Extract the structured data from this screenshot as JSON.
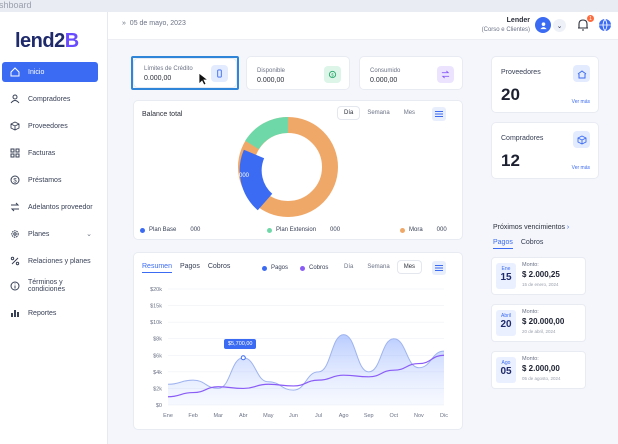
{
  "top_strip": "ashboard",
  "logo": {
    "main": "lend2",
    "accent": "B"
  },
  "sidebar": {
    "items": [
      {
        "label": "Inicio",
        "icon": "home-icon"
      },
      {
        "label": "Compradores",
        "icon": "users-icon"
      },
      {
        "label": "Proveedores",
        "icon": "box-icon"
      },
      {
        "label": "Facturas",
        "icon": "grid-icon"
      },
      {
        "label": "Préstamos",
        "icon": "dollar-icon"
      },
      {
        "label": "Adelantos proveedor",
        "icon": "swap-icon"
      },
      {
        "label": "Planes",
        "icon": "gear-icon"
      },
      {
        "label": "Relaciones y planes",
        "icon": "percent-icon"
      },
      {
        "label": "Términos y condiciones",
        "icon": "info-icon"
      },
      {
        "label": "Reportes",
        "icon": "bars-icon"
      }
    ]
  },
  "header": {
    "date": "05 de mayo, 2023",
    "user_name": "Lender",
    "user_role": "(Corso e Clientes)",
    "notif_count": "1"
  },
  "stats": [
    {
      "label": "Límites de Crédito",
      "value": "0.000,00",
      "color": "#3b6bf2",
      "icon": "credit-icon"
    },
    {
      "label": "Disponible",
      "value": "0.000,00",
      "color": "#28a86b",
      "icon": "money-icon"
    },
    {
      "label": "Consumido",
      "value": "0.000,00",
      "color": "#8a5cf6",
      "icon": "transfer-icon"
    }
  ],
  "balance": {
    "title": "Balance total",
    "periods": [
      "Día",
      "Semana",
      "Mes"
    ],
    "donut_label": "000",
    "legend": [
      {
        "name": "Plan Base",
        "value": "000",
        "color": "#3b6bf2"
      },
      {
        "name": "Plan Extension",
        "value": "000",
        "color": "#6fd8a8"
      },
      {
        "name": "Mora",
        "value": "000",
        "color": "#f0a868"
      }
    ]
  },
  "resumen": {
    "tabs": [
      "Resumen",
      "Pagos",
      "Cobros"
    ],
    "legend": [
      {
        "name": "Pagos",
        "color": "#3b6bf2"
      },
      {
        "name": "Cobros",
        "color": "#8a5cf6"
      }
    ],
    "periods": [
      "Día",
      "Semana",
      "Mes"
    ],
    "tooltip": "$5,700,00"
  },
  "chart_data": {
    "type": "area",
    "x": [
      "Ene",
      "Feb",
      "Mar",
      "Abr",
      "May",
      "Jun",
      "Jul",
      "Ago",
      "Sep",
      "Oct",
      "Nov",
      "Dic"
    ],
    "y_ticks": [
      "$20k",
      "$15k",
      "$10k",
      "$8k",
      "$6k",
      "$4k",
      "$2k",
      "$0"
    ],
    "series": [
      {
        "name": "Pagos",
        "values": [
          2500,
          3000,
          2000,
          5700,
          2800,
          1800,
          4000,
          8500,
          4000,
          8000,
          4500,
          6500
        ]
      },
      {
        "name": "Cobros",
        "values": [
          1000,
          1500,
          2200,
          2000,
          2500,
          2300,
          3000,
          3600,
          3400,
          4200,
          5000,
          6000
        ]
      }
    ]
  },
  "right": {
    "proveedores_label": "Proveedores",
    "proveedores_value": "20",
    "compradores_label": "Compradores",
    "compradores_value": "12",
    "ver_mas": "Ver más",
    "upcoming_title": "Próximos vencimientos",
    "tabs": [
      "Pagos",
      "Cobros"
    ],
    "items": [
      {
        "month": "Ene",
        "day": "15",
        "label": "Monto:",
        "amount": "$ 2.000,25",
        "date": "15 de enero, 2024"
      },
      {
        "month": "Abril",
        "day": "20",
        "label": "Monto:",
        "amount": "$ 20.000,00",
        "date": "20 de abril, 2024"
      },
      {
        "month": "Ago",
        "day": "05",
        "label": "Monto:",
        "amount": "$ 2.000,00",
        "date": "05 de agosto, 2024"
      }
    ]
  }
}
